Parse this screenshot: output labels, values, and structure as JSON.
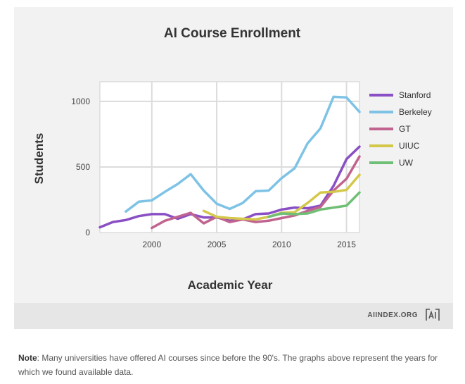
{
  "chart_data": {
    "type": "line",
    "title": "AI Course Enrollment",
    "xlabel": "Academic Year",
    "ylabel": "Students",
    "xlim": [
      1996,
      2016
    ],
    "ylim": [
      0,
      1150
    ],
    "xticks": [
      2000,
      2005,
      2010,
      2015
    ],
    "yticks": [
      0,
      500,
      1000
    ],
    "grid": true,
    "legend_position": "right",
    "series": [
      {
        "name": "Stanford",
        "color": "#8a4fc4",
        "x": [
          1996,
          1997,
          1998,
          1999,
          2000,
          2001,
          2002,
          2003,
          2004,
          2005,
          2006,
          2007,
          2008,
          2009,
          2010,
          2011,
          2012,
          2013,
          2014,
          2015,
          2016
        ],
        "y": [
          40,
          80,
          95,
          125,
          140,
          140,
          105,
          140,
          115,
          115,
          90,
          100,
          140,
          145,
          175,
          190,
          185,
          205,
          355,
          560,
          655
        ]
      },
      {
        "name": "Berkeley",
        "color": "#7ec3e6",
        "x": [
          1998,
          1999,
          2000,
          2001,
          2002,
          2003,
          2004,
          2005,
          2006,
          2007,
          2008,
          2009,
          2010,
          2011,
          2012,
          2013,
          2014,
          2015,
          2016
        ],
        "y": [
          160,
          235,
          245,
          310,
          370,
          445,
          320,
          220,
          180,
          225,
          315,
          320,
          415,
          490,
          680,
          795,
          1035,
          1030,
          920
        ]
      },
      {
        "name": "GT",
        "color": "#c0648f",
        "x": [
          2000,
          2001,
          2002,
          2003,
          2004,
          2005,
          2006,
          2007,
          2008,
          2009,
          2010,
          2011,
          2012,
          2013,
          2014,
          2015,
          2016
        ],
        "y": [
          35,
          90,
          120,
          150,
          70,
          120,
          80,
          100,
          80,
          90,
          110,
          130,
          165,
          195,
          320,
          410,
          580
        ]
      },
      {
        "name": "UIUC",
        "color": "#d4c84a",
        "x": [
          2004,
          2005,
          2006,
          2007,
          2008,
          2009,
          2010,
          2011,
          2012,
          2013,
          2014,
          2015,
          2016
        ],
        "y": [
          165,
          120,
          110,
          105,
          100,
          120,
          150,
          155,
          225,
          305,
          310,
          325,
          440
        ]
      },
      {
        "name": "UW",
        "color": "#6fbf76",
        "x": [
          2009,
          2010,
          2011,
          2012,
          2013,
          2014,
          2015,
          2016
        ],
        "y": [
          120,
          145,
          140,
          145,
          175,
          190,
          205,
          305
        ]
      }
    ]
  },
  "footer": {
    "source": "AIINDEX.ORG"
  },
  "note": {
    "label": "Note",
    "text": ": Many universities have offered AI courses since before the 90's. The graphs above represent the years for which we found available data."
  }
}
